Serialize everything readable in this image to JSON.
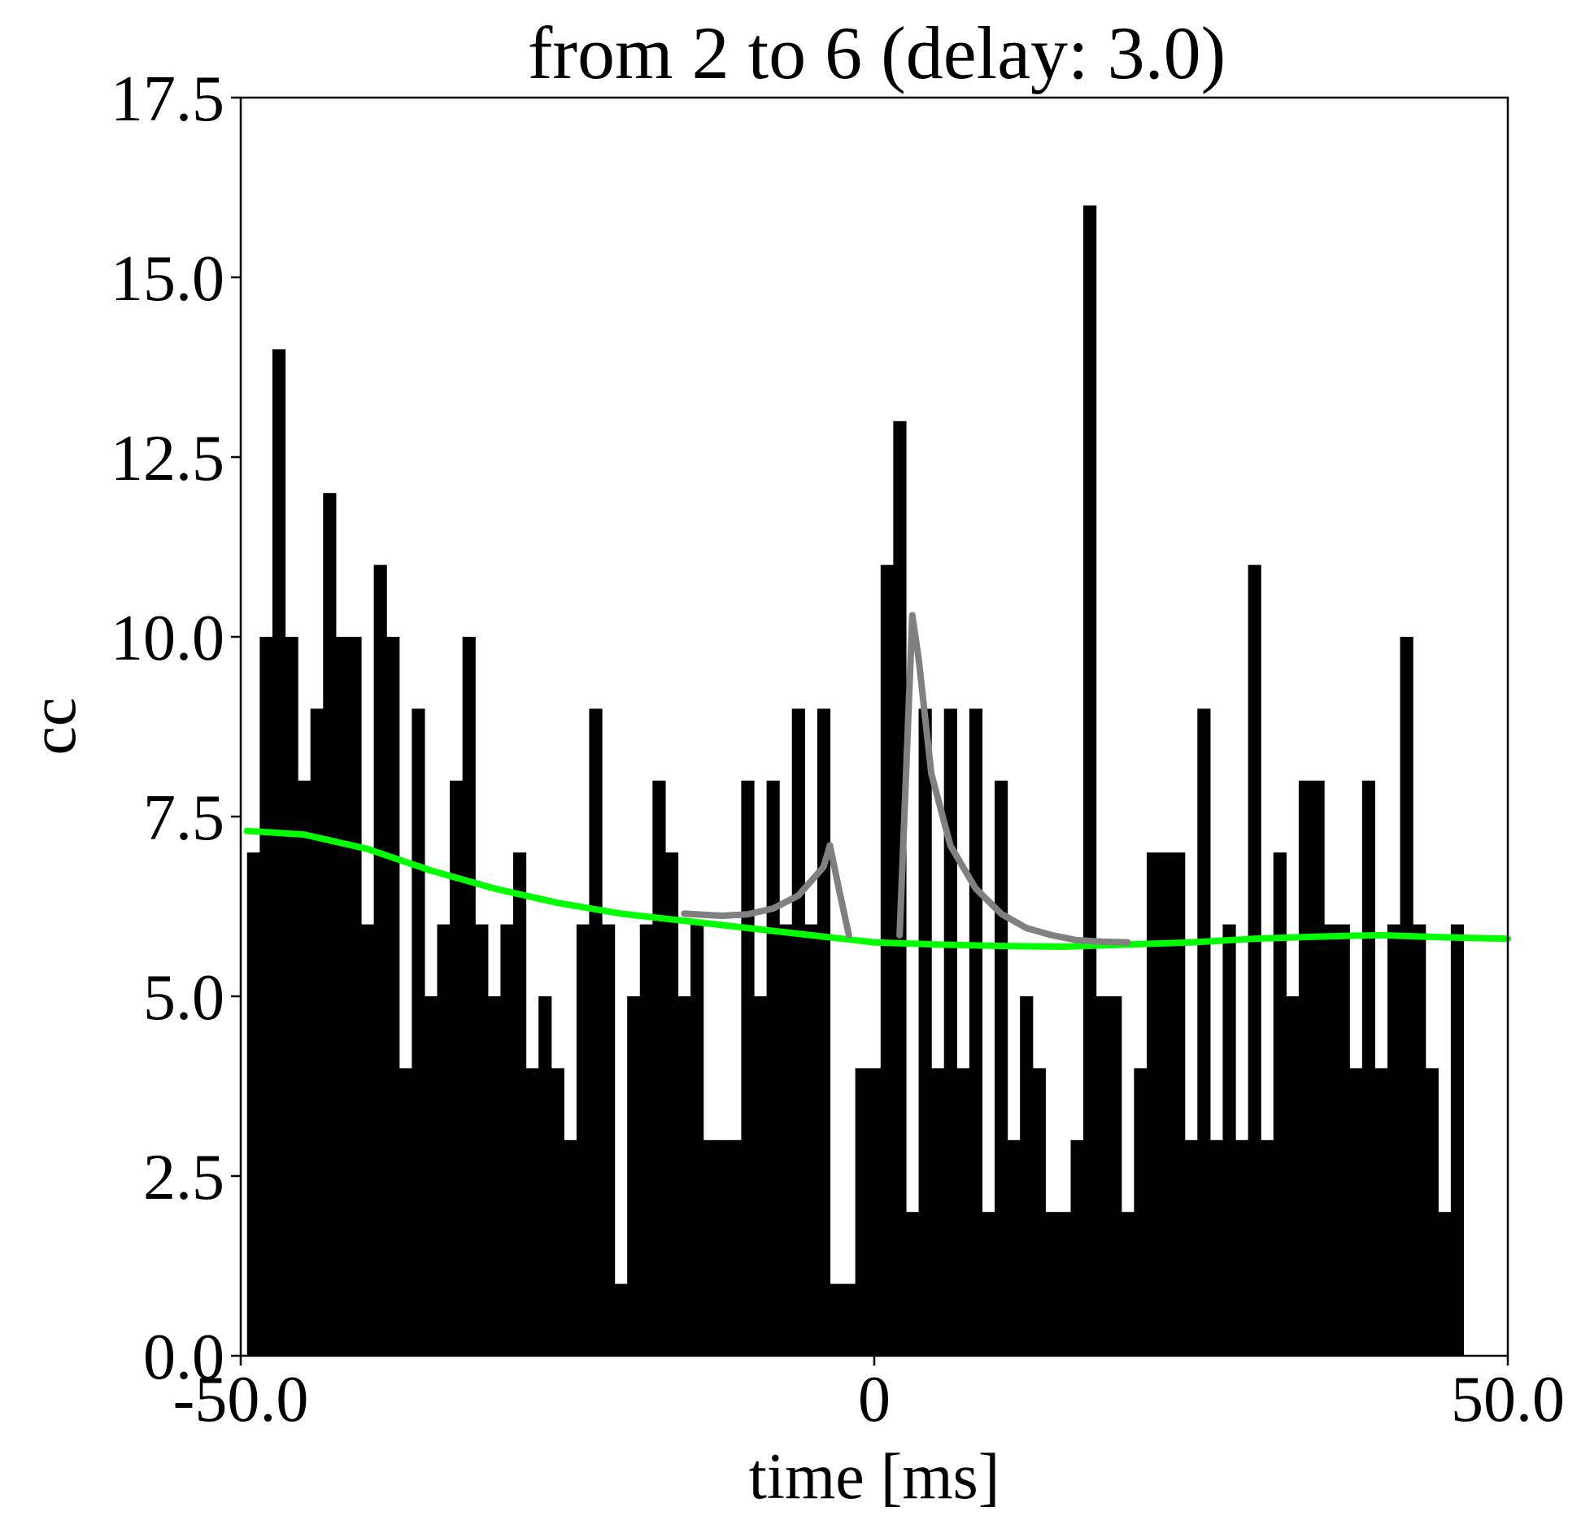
{
  "chart_data": {
    "type": "bar",
    "title": "from 2 to 6 (delay: 3.0)",
    "xlabel": "time [ms]",
    "ylabel": "cc",
    "xlim": [
      -50.0,
      50.0
    ],
    "ylim": [
      0.0,
      17.5
    ],
    "x_ticks": [
      -50.0,
      0,
      50.0
    ],
    "x_tick_labels": [
      "-50.0",
      "0",
      "50.0"
    ],
    "y_ticks": [
      0.0,
      2.5,
      5.0,
      7.5,
      10.0,
      12.5,
      15.0,
      17.5
    ],
    "y_tick_labels": [
      "0.0",
      "2.5",
      "5.0",
      "7.5",
      "10.0",
      "12.5",
      "15.0",
      "17.5"
    ],
    "bin_start": -49.5,
    "bin_width": 1.0,
    "values": [
      7,
      10,
      14,
      10,
      8,
      9,
      12,
      10,
      10,
      6,
      11,
      10,
      4,
      9,
      5,
      6,
      8,
      10,
      6,
      5,
      6,
      7,
      4,
      5,
      4,
      3,
      6,
      9,
      6,
      1,
      5,
      6,
      8,
      7,
      5,
      6,
      3,
      3,
      3,
      8,
      5,
      8,
      6,
      9,
      6,
      9,
      1,
      1,
      4,
      4,
      11,
      13,
      2,
      9,
      4,
      9,
      4,
      9,
      2,
      8,
      3,
      5,
      4,
      2,
      2,
      3,
      16,
      5,
      5,
      2,
      4,
      7,
      7,
      7,
      3,
      9,
      3,
      6,
      3,
      11,
      3,
      7,
      5,
      8,
      8,
      6,
      6,
      4,
      8,
      4,
      6,
      10,
      6,
      4,
      2,
      6
    ],
    "colors": {
      "bars": "#000000",
      "fit_line": "#00ff00",
      "model_line": "#808080"
    },
    "series": [
      {
        "kind": "line",
        "color": "#00ff00",
        "x": [
          -49.5,
          -45,
          -40,
          -35,
          -30,
          -25,
          -20,
          -15,
          -10,
          -5,
          0,
          5,
          10,
          15,
          20,
          25,
          30,
          35,
          40,
          45,
          50
        ],
        "y": [
          7.3,
          7.25,
          7.05,
          6.75,
          6.5,
          6.3,
          6.15,
          6.05,
          5.95,
          5.85,
          5.75,
          5.72,
          5.7,
          5.69,
          5.72,
          5.75,
          5.8,
          5.83,
          5.85,
          5.82,
          5.8
        ]
      },
      {
        "kind": "line",
        "color": "#808080",
        "segments": [
          {
            "x": [
              -15,
              -12,
              -10,
              -8,
              -6,
              -4,
              -3.5,
              -2.8,
              -2
            ],
            "y": [
              6.15,
              6.12,
              6.14,
              6.22,
              6.4,
              6.8,
              7.1,
              6.5,
              5.85
            ]
          },
          {
            "x": [
              2,
              2.6,
              3,
              3.5,
              4.5,
              6,
              8,
              10,
              12,
              14,
              16,
              18,
              20
            ],
            "y": [
              5.85,
              8.5,
              10.3,
              9.7,
              8.1,
              7.1,
              6.5,
              6.15,
              5.95,
              5.85,
              5.78,
              5.76,
              5.75
            ]
          }
        ]
      }
    ],
    "grid": false
  }
}
